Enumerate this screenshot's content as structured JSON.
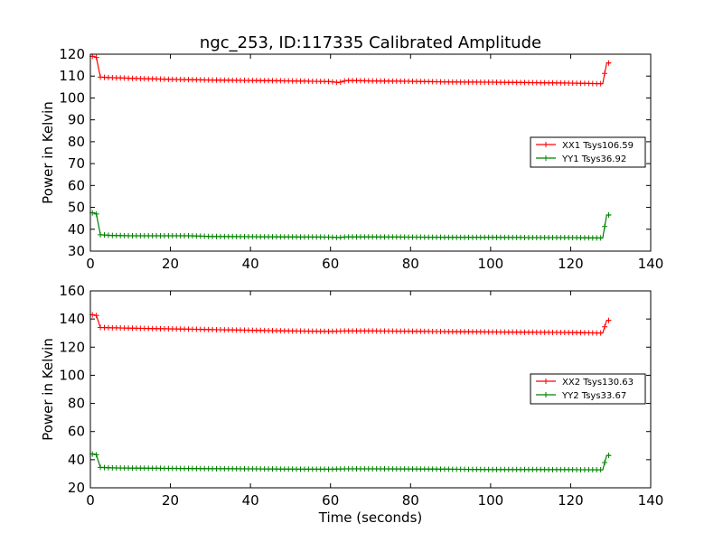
{
  "title": "ngc_253, ID:117335 Calibrated Amplitude",
  "xlabel": "Time (seconds)",
  "ylabel": "Power in Kelvin",
  "colors": {
    "red": "#ff0000",
    "green": "#008000"
  },
  "chart_data": [
    {
      "type": "line",
      "title": "ngc_253, ID:117335 Calibrated Amplitude",
      "xlabel": "",
      "ylabel": "Power in Kelvin",
      "xlim": [
        0,
        140
      ],
      "ylim": [
        30,
        120
      ],
      "xticks": [
        0,
        20,
        40,
        60,
        80,
        100,
        120,
        140
      ],
      "yticks": [
        30,
        40,
        50,
        60,
        70,
        80,
        90,
        100,
        110,
        120
      ],
      "legend_position": "right",
      "series": [
        {
          "name": "XX1 Tsys106.59",
          "color": "#ff0000",
          "points": [
            [
              0.5,
              119
            ],
            [
              1,
              119
            ],
            [
              1.5,
              118.5
            ],
            [
              2.5,
              109.5
            ],
            [
              5,
              109.3
            ],
            [
              10,
              109
            ],
            [
              20,
              108.5
            ],
            [
              30,
              108.2
            ],
            [
              40,
              108
            ],
            [
              50,
              107.8
            ],
            [
              60,
              107.5
            ],
            [
              62,
              107
            ],
            [
              64,
              108
            ],
            [
              70,
              107.8
            ],
            [
              80,
              107.6
            ],
            [
              90,
              107.3
            ],
            [
              100,
              107.2
            ],
            [
              110,
              107
            ],
            [
              120,
              106.8
            ],
            [
              128,
              106.5
            ],
            [
              129,
              116
            ],
            [
              130,
              116
            ]
          ]
        },
        {
          "name": "YY1 Tsys36.92",
          "color": "#008000",
          "points": [
            [
              0.5,
              47.5
            ],
            [
              1,
              47.5
            ],
            [
              1.5,
              47
            ],
            [
              2.5,
              37.5
            ],
            [
              5,
              37.2
            ],
            [
              10,
              37
            ],
            [
              20,
              37
            ],
            [
              25,
              37
            ],
            [
              30,
              36.7
            ],
            [
              40,
              36.6
            ],
            [
              50,
              36.5
            ],
            [
              60,
              36.4
            ],
            [
              62,
              36.2
            ],
            [
              64,
              36.5
            ],
            [
              70,
              36.5
            ],
            [
              80,
              36.4
            ],
            [
              90,
              36.3
            ],
            [
              100,
              36.3
            ],
            [
              110,
              36.2
            ],
            [
              120,
              36.2
            ],
            [
              128,
              36
            ],
            [
              129,
              46.5
            ],
            [
              130,
              46.5
            ]
          ]
        }
      ]
    },
    {
      "type": "line",
      "title": "",
      "xlabel": "Time (seconds)",
      "ylabel": "Power in Kelvin",
      "xlim": [
        0,
        140
      ],
      "ylim": [
        20,
        160
      ],
      "xticks": [
        0,
        20,
        40,
        60,
        80,
        100,
        120,
        140
      ],
      "yticks": [
        20,
        40,
        60,
        80,
        100,
        120,
        140,
        160
      ],
      "legend_position": "right",
      "series": [
        {
          "name": "XX2 Tsys130.63",
          "color": "#ff0000",
          "points": [
            [
              0.5,
              143
            ],
            [
              1,
              143
            ],
            [
              1.5,
              142.5
            ],
            [
              2.5,
              134
            ],
            [
              5,
              133.8
            ],
            [
              10,
              133.5
            ],
            [
              20,
              133
            ],
            [
              30,
              132.5
            ],
            [
              40,
              132
            ],
            [
              50,
              131.5
            ],
            [
              60,
              131.2
            ],
            [
              64,
              131.5
            ],
            [
              70,
              131.5
            ],
            [
              80,
              131.3
            ],
            [
              90,
              131
            ],
            [
              100,
              130.8
            ],
            [
              110,
              130.6
            ],
            [
              120,
              130.4
            ],
            [
              128,
              130
            ],
            [
              129,
              139
            ],
            [
              130,
              139
            ]
          ]
        },
        {
          "name": "YY2 Tsys33.67",
          "color": "#008000",
          "points": [
            [
              0.5,
              44
            ],
            [
              1,
              44
            ],
            [
              1.5,
              43.5
            ],
            [
              2.5,
              34.5
            ],
            [
              5,
              34.2
            ],
            [
              10,
              34
            ],
            [
              20,
              33.8
            ],
            [
              30,
              33.6
            ],
            [
              40,
              33.5
            ],
            [
              50,
              33.3
            ],
            [
              60,
              33.2
            ],
            [
              64,
              33.5
            ],
            [
              70,
              33.5
            ],
            [
              80,
              33.4
            ],
            [
              90,
              33.2
            ],
            [
              100,
              33
            ],
            [
              110,
              33
            ],
            [
              120,
              32.9
            ],
            [
              128,
              32.8
            ],
            [
              129,
              43
            ],
            [
              130,
              43
            ]
          ]
        }
      ]
    }
  ]
}
